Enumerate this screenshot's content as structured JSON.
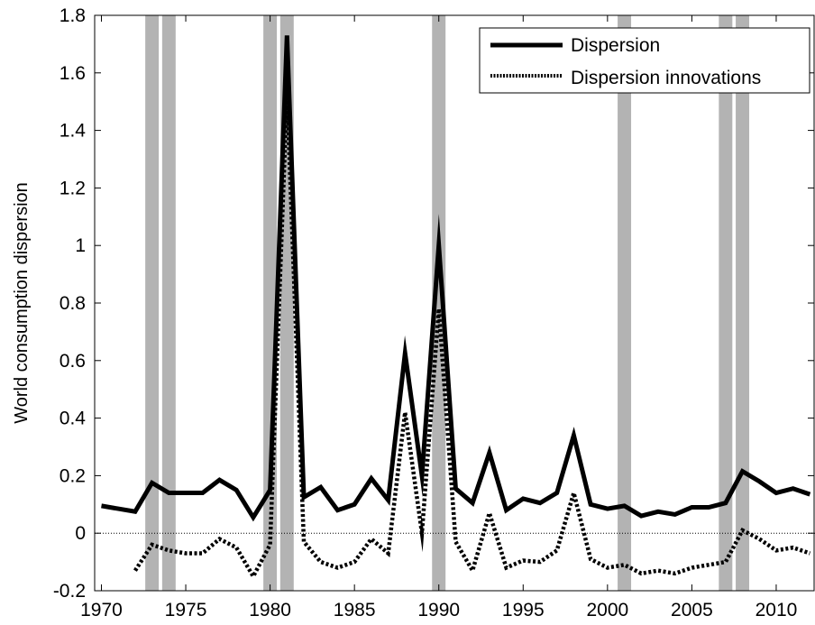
{
  "chart_data": {
    "type": "line",
    "title": "",
    "xlabel": "",
    "ylabel": "World consumption dispersion",
    "xlim": [
      1969.6,
      2012.3
    ],
    "ylim": [
      -0.2,
      1.8
    ],
    "xticks": [
      1970,
      1975,
      1980,
      1985,
      1990,
      1995,
      2000,
      2005,
      2010
    ],
    "xtick_labels": [
      "1970",
      "1975",
      "1980",
      "1985",
      "1990",
      "1995",
      "2000",
      "2005",
      "2010"
    ],
    "yticks": [
      -0.2,
      0,
      0.2,
      0.4,
      0.6,
      0.8,
      1,
      1.2,
      1.4,
      1.6,
      1.8
    ],
    "ytick_labels": [
      "-0.2",
      "0",
      "0.2",
      "0.4",
      "0.6",
      "0.8",
      "1",
      "1.2",
      "1.4",
      "1.6",
      "1.8"
    ],
    "grid": false,
    "legend_position": "top-right",
    "zero_line": true,
    "recession_bars": [
      {
        "start": 1972.6,
        "end": 1973.4
      },
      {
        "start": 1973.6,
        "end": 1974.4
      },
      {
        "start": 1979.6,
        "end": 1980.4
      },
      {
        "start": 1980.6,
        "end": 1981.4
      },
      {
        "start": 1989.6,
        "end": 1990.4
      },
      {
        "start": 2000.6,
        "end": 2001.4
      },
      {
        "start": 2006.6,
        "end": 2007.4
      },
      {
        "start": 2007.6,
        "end": 2008.4
      }
    ],
    "recession_color": "#b3b3b3",
    "series": [
      {
        "name": "Dispersion",
        "style": "solid",
        "color": "#000000",
        "x": [
          1970,
          1971,
          1972,
          1973,
          1974,
          1975,
          1976,
          1977,
          1978,
          1979,
          1980,
          1981,
          1982,
          1983,
          1984,
          1985,
          1986,
          1987,
          1988,
          1989,
          1990,
          1991,
          1992,
          1993,
          1994,
          1995,
          1996,
          1997,
          1998,
          1999,
          2000,
          2001,
          2002,
          2003,
          2004,
          2005,
          2006,
          2007,
          2008,
          2009,
          2010,
          2011,
          2012
        ],
        "values": [
          0.095,
          0.085,
          0.075,
          0.175,
          0.14,
          0.14,
          0.14,
          0.185,
          0.15,
          0.055,
          0.15,
          1.73,
          0.125,
          0.16,
          0.08,
          0.1,
          0.19,
          0.115,
          0.625,
          0.2,
          1.0,
          0.155,
          0.105,
          0.28,
          0.08,
          0.12,
          0.105,
          0.14,
          0.34,
          0.1,
          0.085,
          0.095,
          0.06,
          0.075,
          0.065,
          0.09,
          0.09,
          0.105,
          0.215,
          0.18,
          0.14,
          0.155,
          0.135
        ]
      },
      {
        "name": "Dispersion innovations",
        "style": "dotted",
        "color": "#000000",
        "x": [
          1972,
          1973,
          1974,
          1975,
          1976,
          1977,
          1978,
          1979,
          1980,
          1981,
          1982,
          1983,
          1984,
          1985,
          1986,
          1987,
          1988,
          1989,
          1990,
          1991,
          1992,
          1993,
          1994,
          1995,
          1996,
          1997,
          1998,
          1999,
          2000,
          2001,
          2002,
          2003,
          2004,
          2005,
          2006,
          2007,
          2008,
          2009,
          2010,
          2011,
          2012
        ],
        "values": [
          -0.13,
          -0.04,
          -0.06,
          -0.07,
          -0.07,
          -0.02,
          -0.05,
          -0.15,
          -0.04,
          1.53,
          -0.03,
          -0.1,
          -0.12,
          -0.1,
          -0.02,
          -0.07,
          0.42,
          0.0,
          0.78,
          -0.03,
          -0.13,
          0.07,
          -0.12,
          -0.095,
          -0.1,
          -0.06,
          0.14,
          -0.09,
          -0.12,
          -0.11,
          -0.14,
          -0.13,
          -0.14,
          -0.12,
          -0.11,
          -0.1,
          0.01,
          -0.02,
          -0.06,
          -0.05,
          -0.07
        ]
      }
    ]
  }
}
